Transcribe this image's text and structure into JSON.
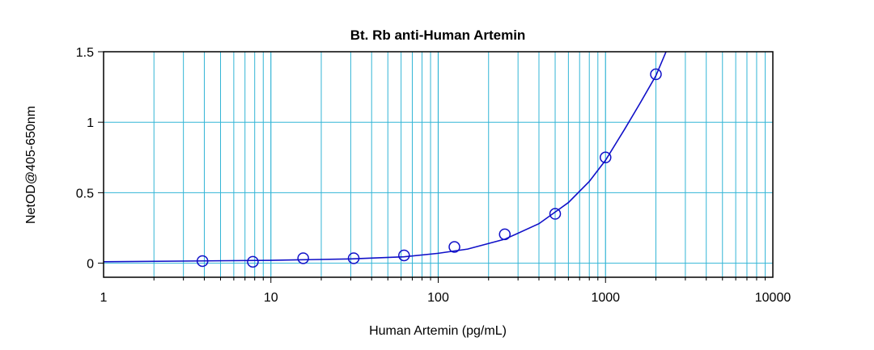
{
  "chart_data": {
    "type": "scatter",
    "title": "Bt. Rb anti-Human Artemin",
    "xlabel": "Human Artemin (pg/mL)",
    "ylabel": "NetOD@405-650nm",
    "x_scale": "log",
    "xlim": [
      1,
      10000
    ],
    "ylim": [
      -0.1,
      1.5
    ],
    "x_ticks": [
      1,
      10,
      100,
      1000,
      10000
    ],
    "x_tick_labels": [
      "1",
      "10",
      "100",
      "1000",
      "10000"
    ],
    "y_ticks": [
      0,
      0.5,
      1,
      1.5
    ],
    "y_tick_labels": [
      "0",
      "0.5",
      "1",
      "1.5"
    ],
    "grid": true,
    "colors": {
      "grid": "#33b5d6",
      "series": "#1010c8",
      "axis": "#000000"
    },
    "series": [
      {
        "marker": "circle",
        "points": [
          {
            "x": 3.9,
            "y": 0.015
          },
          {
            "x": 7.8,
            "y": 0.01
          },
          {
            "x": 15.6,
            "y": 0.035
          },
          {
            "x": 31.25,
            "y": 0.035
          },
          {
            "x": 62.5,
            "y": 0.055
          },
          {
            "x": 125,
            "y": 0.115
          },
          {
            "x": 250,
            "y": 0.205
          },
          {
            "x": 500,
            "y": 0.35
          },
          {
            "x": 1000,
            "y": 0.75
          },
          {
            "x": 2000,
            "y": 1.34
          }
        ]
      }
    ],
    "fit_curve": {
      "type": "line",
      "points": [
        {
          "x": 1,
          "y": 0.01
        },
        {
          "x": 10,
          "y": 0.02
        },
        {
          "x": 30,
          "y": 0.03
        },
        {
          "x": 62.5,
          "y": 0.045
        },
        {
          "x": 100,
          "y": 0.07
        },
        {
          "x": 150,
          "y": 0.1
        },
        {
          "x": 250,
          "y": 0.17
        },
        {
          "x": 400,
          "y": 0.28
        },
        {
          "x": 600,
          "y": 0.43
        },
        {
          "x": 800,
          "y": 0.58
        },
        {
          "x": 1000,
          "y": 0.73
        },
        {
          "x": 1300,
          "y": 0.95
        },
        {
          "x": 1600,
          "y": 1.13
        },
        {
          "x": 2000,
          "y": 1.33
        },
        {
          "x": 2300,
          "y": 1.5
        }
      ]
    }
  }
}
